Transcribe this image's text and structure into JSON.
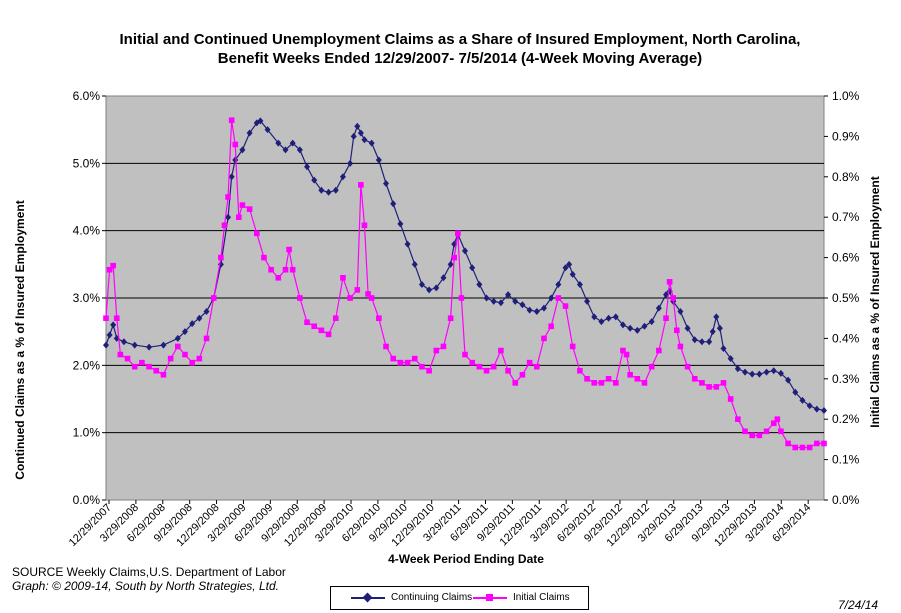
{
  "chart_data": {
    "type": "line",
    "title": "Initial and Continued Unemployment Claims as a Share of Insured Employment, North Carolina, Benefit Weeks Ended 12/29/2007- 7/5/2014 (4-Week Moving Average)",
    "xlabel": "4-Week Period Ending Date",
    "ylabel_left": "Continued Claims as a % of Insured Employment",
    "ylabel_right": "Initial Claims as a % of Insured Employment",
    "x_tick_labels": [
      "12/29/2007",
      "3/29/2008",
      "6/29/2008",
      "9/29/2008",
      "12/29/2008",
      "3/29/2009",
      "6/29/2009",
      "9/29/2009",
      "12/29/2009",
      "3/29/2010",
      "6/29/2010",
      "9/29/2010",
      "12/29/2010",
      "3/29/2011",
      "6/29/2011",
      "9/29/2011",
      "12/29/2011",
      "3/29/2012",
      "6/29/2012",
      "9/29/2012",
      "12/29/2012",
      "3/29/2013",
      "6/29/2013",
      "9/29/2013",
      "12/29/2013",
      "3/29/2014",
      "6/29/2014"
    ],
    "y_left_ticks": [
      "0.0%",
      "1.0%",
      "2.0%",
      "3.0%",
      "4.0%",
      "5.0%",
      "6.0%"
    ],
    "y_right_ticks": [
      "0.0%",
      "0.1%",
      "0.2%",
      "0.3%",
      "0.4%",
      "0.5%",
      "0.6%",
      "0.7%",
      "0.8%",
      "0.9%",
      "1.0%"
    ],
    "ylim_left": [
      0,
      6
    ],
    "ylim_right": [
      0,
      1
    ],
    "grid": "horizontal",
    "legend": "bottom",
    "series": [
      {
        "name": "Continuing Claims",
        "axis": "left",
        "color": "#1f1f7a",
        "marker": "diamond",
        "points": [
          [
            0,
            2.3
          ],
          [
            1,
            2.45
          ],
          [
            2,
            2.6
          ],
          [
            3,
            2.4
          ],
          [
            5,
            2.35
          ],
          [
            8,
            2.3
          ],
          [
            12,
            2.27
          ],
          [
            16,
            2.3
          ],
          [
            20,
            2.4
          ],
          [
            22,
            2.5
          ],
          [
            24,
            2.62
          ],
          [
            26,
            2.7
          ],
          [
            28,
            2.8
          ],
          [
            30,
            3.0
          ],
          [
            32,
            3.5
          ],
          [
            34,
            4.2
          ],
          [
            35,
            4.8
          ],
          [
            36,
            5.05
          ],
          [
            38,
            5.2
          ],
          [
            40,
            5.45
          ],
          [
            42,
            5.6
          ],
          [
            43,
            5.63
          ],
          [
            45,
            5.5
          ],
          [
            48,
            5.3
          ],
          [
            50,
            5.2
          ],
          [
            52,
            5.3
          ],
          [
            54,
            5.2
          ],
          [
            56,
            4.95
          ],
          [
            58,
            4.75
          ],
          [
            60,
            4.6
          ],
          [
            62,
            4.57
          ],
          [
            64,
            4.6
          ],
          [
            66,
            4.8
          ],
          [
            68,
            5.0
          ],
          [
            69,
            5.4
          ],
          [
            70,
            5.55
          ],
          [
            71,
            5.45
          ],
          [
            72,
            5.35
          ],
          [
            74,
            5.3
          ],
          [
            76,
            5.05
          ],
          [
            78,
            4.7
          ],
          [
            80,
            4.4
          ],
          [
            82,
            4.1
          ],
          [
            84,
            3.8
          ],
          [
            86,
            3.5
          ],
          [
            88,
            3.2
          ],
          [
            90,
            3.12
          ],
          [
            92,
            3.15
          ],
          [
            94,
            3.3
          ],
          [
            96,
            3.5
          ],
          [
            97,
            3.8
          ],
          [
            98,
            3.95
          ],
          [
            100,
            3.7
          ],
          [
            102,
            3.45
          ],
          [
            104,
            3.2
          ],
          [
            106,
            3.0
          ],
          [
            108,
            2.95
          ],
          [
            110,
            2.93
          ],
          [
            112,
            3.05
          ],
          [
            114,
            2.95
          ],
          [
            116,
            2.9
          ],
          [
            118,
            2.82
          ],
          [
            120,
            2.8
          ],
          [
            122,
            2.85
          ],
          [
            124,
            3.0
          ],
          [
            126,
            3.2
          ],
          [
            128,
            3.45
          ],
          [
            129,
            3.5
          ],
          [
            130,
            3.35
          ],
          [
            132,
            3.2
          ],
          [
            134,
            2.95
          ],
          [
            136,
            2.72
          ],
          [
            138,
            2.65
          ],
          [
            140,
            2.7
          ],
          [
            142,
            2.72
          ],
          [
            144,
            2.6
          ],
          [
            146,
            2.55
          ],
          [
            148,
            2.52
          ],
          [
            150,
            2.58
          ],
          [
            152,
            2.65
          ],
          [
            154,
            2.85
          ],
          [
            156,
            3.05
          ],
          [
            157,
            3.1
          ],
          [
            158,
            2.95
          ],
          [
            160,
            2.8
          ],
          [
            162,
            2.55
          ],
          [
            164,
            2.38
          ],
          [
            166,
            2.35
          ],
          [
            168,
            2.35
          ],
          [
            169,
            2.5
          ],
          [
            170,
            2.72
          ],
          [
            171,
            2.55
          ],
          [
            172,
            2.25
          ],
          [
            174,
            2.1
          ],
          [
            176,
            1.95
          ],
          [
            178,
            1.9
          ],
          [
            180,
            1.87
          ],
          [
            182,
            1.87
          ],
          [
            184,
            1.9
          ],
          [
            186,
            1.92
          ],
          [
            188,
            1.88
          ],
          [
            190,
            1.78
          ],
          [
            192,
            1.6
          ],
          [
            194,
            1.48
          ],
          [
            196,
            1.4
          ],
          [
            198,
            1.35
          ],
          [
            200,
            1.33
          ]
        ]
      },
      {
        "name": "Initial Claims",
        "axis": "right",
        "color": "#ff00ff",
        "marker": "square",
        "points": [
          [
            0,
            0.45
          ],
          [
            1,
            0.57
          ],
          [
            2,
            0.58
          ],
          [
            3,
            0.45
          ],
          [
            4,
            0.36
          ],
          [
            6,
            0.35
          ],
          [
            8,
            0.33
          ],
          [
            10,
            0.34
          ],
          [
            12,
            0.33
          ],
          [
            14,
            0.32
          ],
          [
            16,
            0.31
          ],
          [
            18,
            0.35
          ],
          [
            20,
            0.38
          ],
          [
            22,
            0.36
          ],
          [
            24,
            0.34
          ],
          [
            26,
            0.35
          ],
          [
            28,
            0.4
          ],
          [
            30,
            0.5
          ],
          [
            32,
            0.6
          ],
          [
            33,
            0.68
          ],
          [
            34,
            0.75
          ],
          [
            35,
            0.94
          ],
          [
            36,
            0.88
          ],
          [
            37,
            0.7
          ],
          [
            38,
            0.73
          ],
          [
            40,
            0.72
          ],
          [
            42,
            0.66
          ],
          [
            44,
            0.6
          ],
          [
            46,
            0.57
          ],
          [
            48,
            0.55
          ],
          [
            50,
            0.57
          ],
          [
            51,
            0.62
          ],
          [
            52,
            0.57
          ],
          [
            54,
            0.5
          ],
          [
            56,
            0.44
          ],
          [
            58,
            0.43
          ],
          [
            60,
            0.42
          ],
          [
            62,
            0.41
          ],
          [
            64,
            0.45
          ],
          [
            66,
            0.55
          ],
          [
            68,
            0.5
          ],
          [
            70,
            0.52
          ],
          [
            71,
            0.78
          ],
          [
            72,
            0.68
          ],
          [
            73,
            0.51
          ],
          [
            74,
            0.5
          ],
          [
            76,
            0.45
          ],
          [
            78,
            0.38
          ],
          [
            80,
            0.35
          ],
          [
            82,
            0.34
          ],
          [
            84,
            0.34
          ],
          [
            86,
            0.35
          ],
          [
            88,
            0.33
          ],
          [
            90,
            0.32
          ],
          [
            92,
            0.37
          ],
          [
            94,
            0.38
          ],
          [
            96,
            0.45
          ],
          [
            97,
            0.6
          ],
          [
            98,
            0.66
          ],
          [
            99,
            0.5
          ],
          [
            100,
            0.36
          ],
          [
            102,
            0.34
          ],
          [
            104,
            0.33
          ],
          [
            106,
            0.32
          ],
          [
            108,
            0.33
          ],
          [
            110,
            0.37
          ],
          [
            112,
            0.32
          ],
          [
            114,
            0.29
          ],
          [
            116,
            0.31
          ],
          [
            118,
            0.34
          ],
          [
            120,
            0.33
          ],
          [
            122,
            0.4
          ],
          [
            124,
            0.43
          ],
          [
            126,
            0.5
          ],
          [
            128,
            0.48
          ],
          [
            130,
            0.38
          ],
          [
            132,
            0.32
          ],
          [
            134,
            0.3
          ],
          [
            136,
            0.29
          ],
          [
            138,
            0.29
          ],
          [
            140,
            0.3
          ],
          [
            142,
            0.29
          ],
          [
            144,
            0.37
          ],
          [
            145,
            0.36
          ],
          [
            146,
            0.31
          ],
          [
            148,
            0.3
          ],
          [
            150,
            0.29
          ],
          [
            152,
            0.33
          ],
          [
            154,
            0.37
          ],
          [
            156,
            0.45
          ],
          [
            157,
            0.54
          ],
          [
            158,
            0.5
          ],
          [
            159,
            0.42
          ],
          [
            160,
            0.38
          ],
          [
            162,
            0.33
          ],
          [
            164,
            0.3
          ],
          [
            166,
            0.29
          ],
          [
            168,
            0.28
          ],
          [
            170,
            0.28
          ],
          [
            172,
            0.29
          ],
          [
            174,
            0.25
          ],
          [
            176,
            0.2
          ],
          [
            178,
            0.17
          ],
          [
            180,
            0.16
          ],
          [
            182,
            0.16
          ],
          [
            184,
            0.17
          ],
          [
            186,
            0.19
          ],
          [
            187,
            0.2
          ],
          [
            188,
            0.17
          ],
          [
            190,
            0.14
          ],
          [
            192,
            0.13
          ],
          [
            194,
            0.13
          ],
          [
            196,
            0.13
          ],
          [
            198,
            0.14
          ],
          [
            200,
            0.14
          ]
        ]
      }
    ]
  },
  "source_text": "SOURCE  Weekly Claims,U.S. Department of Labor",
  "credit_text": "Graph: © 2009-14, South by North Strategies, Ltd.",
  "date_text": "7/24/14"
}
